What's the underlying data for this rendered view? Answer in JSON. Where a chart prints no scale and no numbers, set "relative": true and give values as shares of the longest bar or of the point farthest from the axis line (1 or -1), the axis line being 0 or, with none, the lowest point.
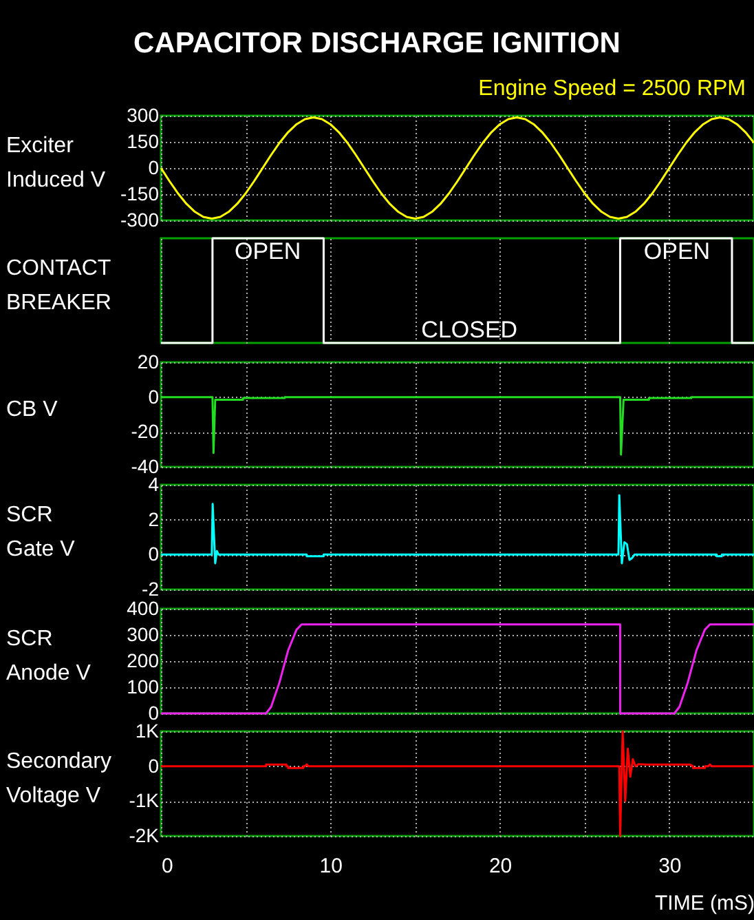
{
  "chart_data": [
    {
      "type": "line",
      "title": "CAPACITOR DISCHARGE IGNITION",
      "subtitle": "Engine Speed = 2500 RPM",
      "ylabel": "Exciter\nInduced V",
      "xlim": [
        0,
        35
      ],
      "xticks": [
        0,
        {
          "value": 5,
          "label": null
        },
        10,
        {
          "value": 15,
          "label": null
        },
        20,
        {
          "value": 25,
          "label": null
        },
        30
      ],
      "ylim": [
        -300,
        300
      ],
      "yticks": [
        300,
        150,
        0,
        -150,
        -300
      ],
      "grid": true,
      "tick_labels": "y",
      "x": [
        0,
        0.5,
        1,
        1.5,
        2,
        2.5,
        3,
        3.5,
        4,
        4.5,
        5,
        5.5,
        6,
        6.5,
        7,
        7.5,
        8,
        8.5,
        9,
        9.5,
        10,
        10.5,
        11,
        11.5,
        12,
        12.5,
        13,
        13.5,
        14,
        14.5,
        15,
        15.5,
        16,
        16.5,
        17,
        17.5,
        18,
        18.5,
        19,
        19.5,
        20,
        20.5,
        21,
        21.5,
        22,
        22.5,
        23,
        23.5,
        24,
        24.5,
        25,
        25.5,
        26,
        26.5,
        27,
        27.5,
        28,
        28.5,
        29,
        29.5,
        30,
        30.5,
        31,
        31.5,
        32,
        32.5,
        33,
        33.5,
        34,
        34.5,
        35
      ],
      "series": [
        {
          "color": "#ffff00",
          "values": [
            0,
            -75,
            -145,
            -205,
            -251,
            -280,
            -290,
            -280,
            -251,
            -205,
            -145,
            -75,
            0,
            75,
            145,
            205,
            251,
            280,
            290,
            280,
            251,
            205,
            145,
            75,
            0,
            -75,
            -145,
            -205,
            -251,
            -280,
            -290,
            -280,
            -251,
            -205,
            -145,
            -75,
            0,
            75,
            145,
            205,
            251,
            280,
            290,
            280,
            251,
            205,
            145,
            75,
            0,
            -75,
            -145,
            -205,
            -251,
            -280,
            -290,
            -280,
            -251,
            -205,
            -145,
            -75,
            0,
            75,
            145,
            205,
            251,
            280,
            290,
            280,
            251,
            205,
            145
          ]
        }
      ]
    },
    {
      "type": "step",
      "relative": true,
      "ylabel": "CONTACT\nBREAKER",
      "xlim": [
        0,
        35
      ],
      "xticks": [
        0,
        {
          "value": 5,
          "label": null
        },
        10,
        {
          "value": 15,
          "label": null
        },
        20,
        {
          "value": 25,
          "label": null
        },
        30
      ],
      "grid": "x",
      "tick_labels": false,
      "x": [
        0,
        3.04,
        9.6,
        27.1,
        33.7,
        35
      ],
      "series": [
        {
          "color": "#ffffff",
          "values": [
            0,
            1,
            0,
            1,
            0,
            0
          ]
        }
      ],
      "annotations": [
        "OPEN",
        "OPEN",
        "CLOSED"
      ]
    },
    {
      "type": "line",
      "ylabel": "CB V",
      "xlim": [
        0,
        35
      ],
      "xticks": [
        0,
        {
          "value": 5,
          "label": null
        },
        10,
        {
          "value": 15,
          "label": null
        },
        20,
        {
          "value": 25,
          "label": null
        },
        30
      ],
      "ylim": [
        -40,
        20
      ],
      "yticks": [
        20,
        0,
        -20,
        -40
      ],
      "grid": true,
      "tick_labels": "y",
      "x": [
        0,
        3.04,
        3.1,
        3.2,
        4.84,
        4.84,
        7.3,
        7.3,
        27.1,
        27.15,
        27.3,
        28.8,
        28.8,
        31.3,
        31.3,
        35
      ],
      "series": [
        {
          "color": "#22dd22",
          "values": [
            0,
            0,
            -32,
            -1.5,
            -1.5,
            -0.5,
            -0.5,
            0,
            0,
            -33,
            -1.5,
            -1.5,
            -0.5,
            -0.5,
            0,
            0
          ]
        }
      ]
    },
    {
      "type": "line",
      "ylabel": "SCR\nGate V",
      "xlim": [
        0,
        35
      ],
      "xticks": [
        0,
        {
          "value": 5,
          "label": null
        },
        10,
        {
          "value": 15,
          "label": null
        },
        20,
        {
          "value": 25,
          "label": null
        },
        30
      ],
      "ylim": [
        -2,
        4
      ],
      "yticks": [
        4,
        2,
        0,
        -2
      ],
      "grid": true,
      "tick_labels": "y",
      "x": [
        0,
        3.0,
        3.05,
        3.2,
        3.3,
        3.4,
        3.5,
        8.6,
        8.6,
        9.6,
        9.6,
        27.0,
        27.05,
        27.2,
        27.35,
        27.5,
        27.65,
        27.8,
        27.95,
        28.1,
        32.8,
        32.8,
        33.1,
        33.1,
        35
      ],
      "series": [
        {
          "color": "#00ffff",
          "values": [
            0,
            0,
            2.9,
            -0.5,
            0.2,
            0,
            0,
            0,
            -0.1,
            -0.1,
            0,
            0,
            3.4,
            -0.5,
            0.7,
            0.6,
            -0.3,
            -0.2,
            0,
            0,
            0,
            -0.1,
            -0.1,
            0,
            0
          ]
        }
      ]
    },
    {
      "type": "line",
      "ylabel": "SCR\nAnode V",
      "xlim": [
        0,
        35
      ],
      "xticks": [
        0,
        {
          "value": 5,
          "label": null
        },
        10,
        {
          "value": 15,
          "label": null
        },
        20,
        {
          "value": 25,
          "label": null
        },
        30
      ],
      "ylim": [
        0,
        400
      ],
      "yticks": [
        400,
        300,
        200,
        100,
        0
      ],
      "grid": true,
      "tick_labels": "y",
      "x": [
        0,
        6.2,
        6.5,
        7,
        7.5,
        8,
        8.3,
        27.1,
        27.1,
        30.3,
        30.6,
        31.1,
        31.6,
        32.1,
        32.4,
        35
      ],
      "series": [
        {
          "color": "#ee22ee",
          "values": [
            0,
            0,
            25,
            120,
            240,
            320,
            340,
            340,
            0,
            0,
            25,
            120,
            240,
            320,
            340,
            340
          ]
        }
      ]
    },
    {
      "type": "line",
      "ylabel": "Secondary\nVoltage V",
      "xlabel": "TIME  (mS)",
      "xlim": [
        0,
        35
      ],
      "xticks": [
        0,
        {
          "value": 5,
          "label": null
        },
        10,
        {
          "value": 15,
          "label": null
        },
        20,
        {
          "value": 25,
          "label": null
        },
        30
      ],
      "ylim": [
        -2000,
        1000
      ],
      "yticks": [
        {
          "value": 1000,
          "label": "1K"
        },
        0,
        {
          "value": -1000,
          "label": "-1K"
        },
        {
          "value": -2000,
          "label": "-2K"
        }
      ],
      "grid": true,
      "x": [
        0,
        6.2,
        6.2,
        7.4,
        7.4,
        7.5,
        7.5,
        8.4,
        8.4,
        8.5,
        8.6,
        8.7,
        27.05,
        27.1,
        27.25,
        27.4,
        27.55,
        27.7,
        27.85,
        28.0,
        28.2,
        28.6,
        31.2,
        31.4,
        31.4,
        32.1,
        32.1,
        32.3,
        32.4,
        32.5,
        35
      ],
      "series": [
        {
          "color": "#ff0000",
          "values": [
            0,
            0,
            50,
            50,
            0,
            0,
            -50,
            -50,
            0,
            0,
            50,
            0,
            0,
            -2000,
            1000,
            -1000,
            500,
            -300,
            200,
            0,
            60,
            50,
            50,
            0,
            -50,
            -50,
            0,
            0,
            50,
            0,
            0
          ]
        }
      ]
    }
  ]
}
